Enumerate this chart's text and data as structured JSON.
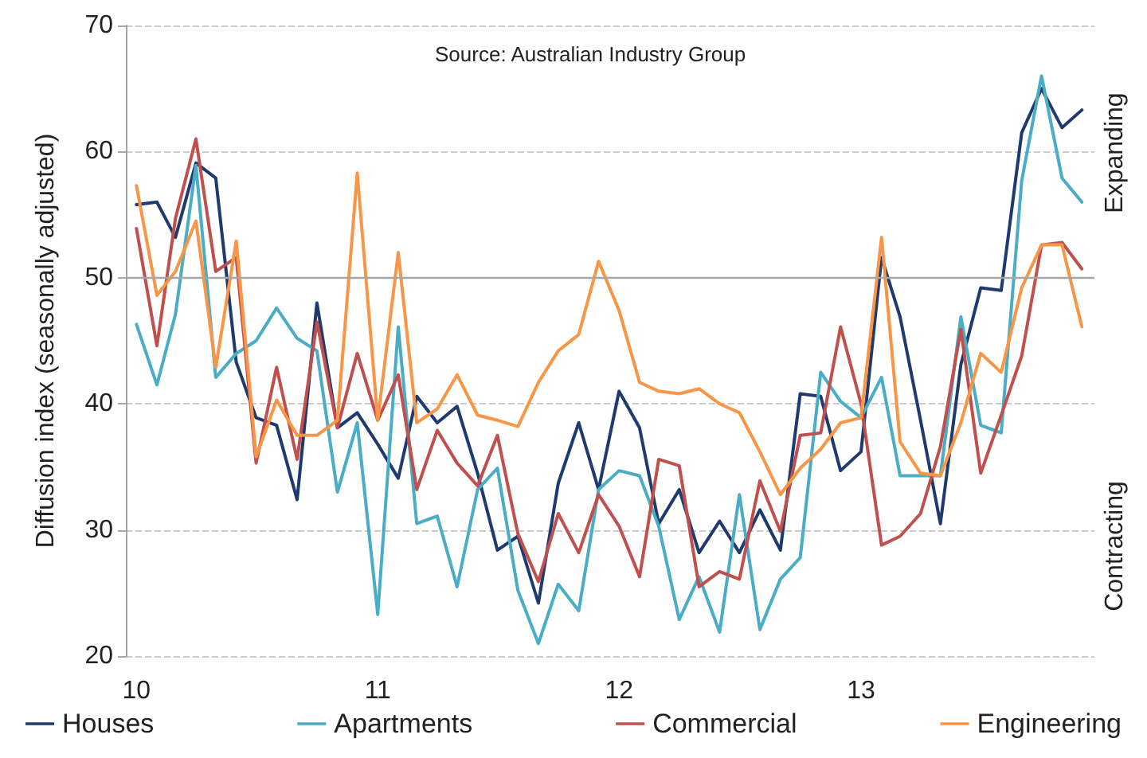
{
  "chart_data": {
    "type": "line",
    "ylabel": "Diffusion index (seasonally adjusted)",
    "annotations": [
      "Source: Australian Industry Group",
      "Expanding",
      "Contracting"
    ],
    "x": [
      "2010-01",
      "2010-02",
      "2010-03",
      "2010-04",
      "2010-05",
      "2010-06",
      "2010-07",
      "2010-08",
      "2010-09",
      "2010-10",
      "2010-11",
      "2010-12",
      "2011-01",
      "2011-02",
      "2011-03",
      "2011-04",
      "2011-05",
      "2011-06",
      "2011-07",
      "2011-08",
      "2011-09",
      "2011-10",
      "2011-11",
      "2011-12",
      "2012-01",
      "2012-02",
      "2012-03",
      "2012-04",
      "2012-05",
      "2012-06",
      "2012-07",
      "2012-08",
      "2012-09",
      "2012-10",
      "2012-11",
      "2012-12",
      "2013-01",
      "2013-02",
      "2013-03",
      "2013-04",
      "2013-05",
      "2013-06",
      "2013-07",
      "2013-08",
      "2013-09",
      "2013-10",
      "2013-11",
      "2013-12"
    ],
    "series": [
      {
        "name": "Houses",
        "color": "#1f3a6e",
        "values": [
          55.8,
          56,
          53.2,
          59.1,
          57.9,
          43.3,
          38.9,
          38.3,
          32.4,
          48,
          38.1,
          39.3,
          36.8,
          34.1,
          40.6,
          38.5,
          39.8,
          34.5,
          28.4,
          29.5,
          24.2,
          33.7,
          38.5,
          33.2,
          41,
          38.1,
          30.5,
          33.2,
          28.2,
          30.7,
          28.2,
          31.6,
          28.4,
          40.8,
          40.6,
          34.7,
          36.2,
          51.6,
          46.9,
          38.7,
          30.5,
          43.1,
          49.2,
          49,
          61.5,
          65,
          61.9,
          63.3
        ]
      },
      {
        "name": "Apartments",
        "color": "#4bacc6",
        "values": [
          46.3,
          41.5,
          47.1,
          58.9,
          42.1,
          44,
          45,
          47.6,
          45.2,
          44.2,
          33,
          38.5,
          23.3,
          46.1,
          30.5,
          31.1,
          25.5,
          33.2,
          34.9,
          25.2,
          21,
          25.7,
          23.6,
          33.2,
          34.7,
          34.3,
          30.3,
          22.9,
          26.3,
          21.9,
          32.8,
          22.1,
          26.1,
          27.8,
          42.5,
          40.2,
          38.9,
          42.1,
          34.3,
          34.3,
          34.3,
          46.9,
          38.3,
          37.7,
          57.7,
          66,
          57.9,
          56
        ]
      },
      {
        "name": "Commercial",
        "color": "#c0504d",
        "values": [
          53.9,
          44.6,
          54.7,
          61,
          50.5,
          51.6,
          35.3,
          42.9,
          35.6,
          46.5,
          38.1,
          44,
          38.7,
          42.3,
          33.2,
          37.9,
          35.3,
          33.5,
          37.5,
          29.7,
          25.9,
          31.3,
          28.2,
          32.8,
          30.3,
          26.3,
          35.6,
          35.1,
          25.5,
          26.7,
          26.1,
          33.9,
          29.9,
          37.5,
          37.7,
          46.1,
          40,
          28.8,
          29.5,
          31.3,
          36.6,
          45.9,
          34.5,
          39.1,
          43.8,
          52.6,
          52.8,
          50.7
        ]
      },
      {
        "name": "Engineering",
        "color": "#f79646",
        "values": [
          57.3,
          48.6,
          50.5,
          54.5,
          42.9,
          52.9,
          35.8,
          40.3,
          37.5,
          37.5,
          38.7,
          58.3,
          38.7,
          52,
          38.5,
          39.6,
          42.3,
          39.1,
          38.7,
          38.2,
          41.7,
          44.2,
          45.5,
          51.3,
          47.4,
          41.7,
          41,
          40.8,
          41.2,
          40,
          39.3,
          36.2,
          32.8,
          34.9,
          36.4,
          38.5,
          38.9,
          53.2,
          37,
          34.5,
          34.3,
          38.5,
          44,
          42.5,
          49.2,
          52.6,
          52.6,
          46.1
        ]
      }
    ],
    "xlim": [
      "2009-12-16",
      "2013-12-20"
    ],
    "xticks": [
      {
        "value": "2010-01",
        "label": "10"
      },
      {
        "value": "2011-01",
        "label": "11"
      },
      {
        "value": "2012-01",
        "label": "12"
      },
      {
        "value": "2013-01",
        "label": "13"
      }
    ],
    "ylim": [
      20,
      70
    ],
    "yticks": [
      20,
      30,
      40,
      50,
      60,
      70
    ],
    "ref_lines": [
      {
        "axis": "y",
        "value": 50,
        "color": "#a6a6a6",
        "line_style": "solid"
      }
    ],
    "grid": "y",
    "legend": "bottom",
    "marker": "none",
    "line_style": "solid"
  }
}
